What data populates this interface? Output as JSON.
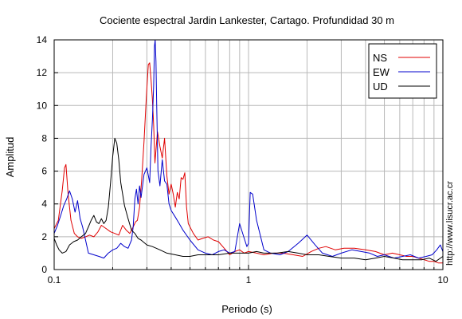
{
  "chart_data": {
    "type": "line",
    "title": "Cociente espectral Jardin Lankester, Cartago. Profundidad 30 m",
    "xlabel": "Periodo (s)",
    "ylabel": "Amplitud",
    "xscale": "log",
    "xlim": [
      0.1,
      10
    ],
    "ylim": [
      0,
      14
    ],
    "x_tick_labels": [
      "0.1",
      "1",
      "10"
    ],
    "y_tick_labels": [
      "0",
      "2",
      "4",
      "6",
      "8",
      "10",
      "12",
      "14"
    ],
    "grid": true,
    "legend_position": "top-right",
    "side_note": "http://www.lisucr.ac.cr",
    "series": [
      {
        "name": "NS",
        "color": "#e00000",
        "x": [
          0.1,
          0.105,
          0.11,
          0.113,
          0.115,
          0.118,
          0.122,
          0.127,
          0.132,
          0.138,
          0.145,
          0.152,
          0.16,
          0.168,
          0.175,
          0.185,
          0.195,
          0.205,
          0.215,
          0.225,
          0.235,
          0.245,
          0.255,
          0.262,
          0.268,
          0.275,
          0.282,
          0.29,
          0.298,
          0.305,
          0.31,
          0.315,
          0.32,
          0.325,
          0.33,
          0.34,
          0.35,
          0.36,
          0.37,
          0.38,
          0.39,
          0.4,
          0.41,
          0.42,
          0.43,
          0.44,
          0.45,
          0.46,
          0.47,
          0.48,
          0.49,
          0.5,
          0.52,
          0.55,
          0.58,
          0.62,
          0.66,
          0.7,
          0.75,
          0.8,
          0.85,
          0.9,
          0.95,
          1.0,
          1.1,
          1.2,
          1.35,
          1.5,
          1.7,
          1.9,
          2.1,
          2.3,
          2.5,
          2.8,
          3.1,
          3.5,
          4.0,
          4.5,
          5.0,
          5.5,
          6.0,
          6.5,
          7.0,
          7.5,
          8.0,
          8.5,
          9.0,
          9.5,
          10.0
        ],
        "values": [
          2.5,
          3.0,
          4.8,
          6.2,
          6.4,
          4.6,
          3.0,
          2.2,
          2.0,
          1.9,
          2.0,
          2.1,
          2.0,
          2.3,
          2.7,
          2.5,
          2.3,
          2.2,
          2.1,
          2.7,
          2.4,
          2.2,
          2.6,
          2.9,
          3.0,
          3.8,
          5.5,
          7.8,
          10.5,
          12.5,
          12.6,
          11.6,
          10.4,
          8.8,
          6.5,
          8.4,
          7.5,
          6.8,
          8.0,
          5.7,
          4.6,
          5.2,
          4.6,
          3.8,
          4.7,
          4.3,
          5.6,
          5.5,
          5.9,
          3.8,
          2.8,
          2.6,
          2.2,
          1.8,
          1.9,
          2.0,
          1.8,
          1.7,
          1.3,
          0.9,
          1.1,
          1.2,
          1.0,
          1.1,
          1.0,
          0.9,
          1.0,
          1.0,
          0.9,
          0.8,
          1.1,
          1.3,
          1.4,
          1.2,
          1.3,
          1.3,
          1.2,
          1.1,
          0.9,
          1.0,
          0.9,
          0.8,
          0.8,
          0.7,
          0.6,
          0.5,
          0.5,
          0.4,
          0.4
        ]
      },
      {
        "name": "EW",
        "color": "#0000cc",
        "x": [
          0.1,
          0.104,
          0.108,
          0.112,
          0.116,
          0.12,
          0.124,
          0.128,
          0.132,
          0.136,
          0.14,
          0.145,
          0.15,
          0.16,
          0.17,
          0.18,
          0.19,
          0.2,
          0.21,
          0.22,
          0.23,
          0.24,
          0.25,
          0.255,
          0.26,
          0.265,
          0.27,
          0.275,
          0.28,
          0.29,
          0.3,
          0.31,
          0.315,
          0.32,
          0.325,
          0.328,
          0.331,
          0.334,
          0.337,
          0.342,
          0.35,
          0.36,
          0.37,
          0.38,
          0.39,
          0.4,
          0.42,
          0.44,
          0.46,
          0.5,
          0.55,
          0.6,
          0.65,
          0.7,
          0.75,
          0.8,
          0.85,
          0.9,
          0.95,
          0.98,
          1.0,
          1.02,
          1.05,
          1.1,
          1.2,
          1.3,
          1.45,
          1.6,
          1.8,
          2.0,
          2.2,
          2.4,
          2.7,
          3.0,
          3.4,
          3.8,
          4.2,
          4.6,
          5.0,
          5.6,
          6.2,
          6.8,
          7.5,
          8.2,
          8.8,
          9.3,
          9.7,
          10.0
        ],
        "values": [
          2.2,
          2.7,
          3.3,
          3.9,
          4.3,
          4.8,
          4.3,
          3.5,
          4.2,
          3.1,
          2.6,
          1.8,
          1.0,
          0.9,
          0.8,
          0.7,
          1.0,
          1.2,
          1.3,
          1.6,
          1.4,
          1.3,
          1.8,
          2.6,
          4.3,
          4.9,
          4.0,
          5.1,
          4.4,
          5.8,
          6.2,
          5.3,
          7.5,
          9.1,
          11.2,
          13.6,
          14.0,
          12.7,
          10.1,
          6.0,
          5.1,
          6.7,
          5.4,
          5.2,
          4.0,
          3.6,
          3.2,
          2.8,
          2.4,
          1.8,
          1.2,
          1.0,
          0.9,
          1.1,
          1.2,
          1.0,
          1.1,
          2.8,
          1.9,
          1.4,
          1.6,
          4.7,
          4.6,
          3.0,
          1.2,
          1.0,
          0.9,
          1.1,
          1.6,
          2.1,
          1.5,
          1.0,
          0.8,
          1.0,
          1.2,
          1.1,
          1.0,
          0.8,
          0.9,
          0.7,
          0.8,
          0.9,
          0.7,
          0.8,
          0.9,
          1.2,
          1.5,
          1.1
        ]
      },
      {
        "name": "UD",
        "color": "#000000",
        "x": [
          0.1,
          0.103,
          0.106,
          0.11,
          0.115,
          0.12,
          0.126,
          0.132,
          0.138,
          0.145,
          0.15,
          0.155,
          0.16,
          0.165,
          0.17,
          0.175,
          0.18,
          0.185,
          0.19,
          0.195,
          0.2,
          0.205,
          0.21,
          0.215,
          0.22,
          0.23,
          0.24,
          0.25,
          0.26,
          0.27,
          0.28,
          0.3,
          0.32,
          0.35,
          0.38,
          0.42,
          0.46,
          0.5,
          0.55,
          0.6,
          0.7,
          0.8,
          0.9,
          1.0,
          1.1,
          1.2,
          1.4,
          1.6,
          1.8,
          2.0,
          2.3,
          2.6,
          3.0,
          3.5,
          4.0,
          4.5,
          5.0,
          5.6,
          6.2,
          7.0,
          7.8,
          8.5,
          9.2,
          10.0
        ],
        "values": [
          1.9,
          1.5,
          1.2,
          1.0,
          1.1,
          1.5,
          1.7,
          1.8,
          2.0,
          2.2,
          2.6,
          3.0,
          3.3,
          2.9,
          2.8,
          3.1,
          2.8,
          3.0,
          3.8,
          5.3,
          6.9,
          8.0,
          7.7,
          6.7,
          5.3,
          3.9,
          3.1,
          2.4,
          2.2,
          1.9,
          1.8,
          1.5,
          1.4,
          1.2,
          1.0,
          0.9,
          0.8,
          0.8,
          0.9,
          0.9,
          0.9,
          1.0,
          1.0,
          1.0,
          1.1,
          1.0,
          1.0,
          1.1,
          1.0,
          0.9,
          0.9,
          0.8,
          0.7,
          0.7,
          0.6,
          0.7,
          0.8,
          0.7,
          0.6,
          0.6,
          0.6,
          0.7,
          0.5,
          0.8
        ]
      }
    ]
  }
}
